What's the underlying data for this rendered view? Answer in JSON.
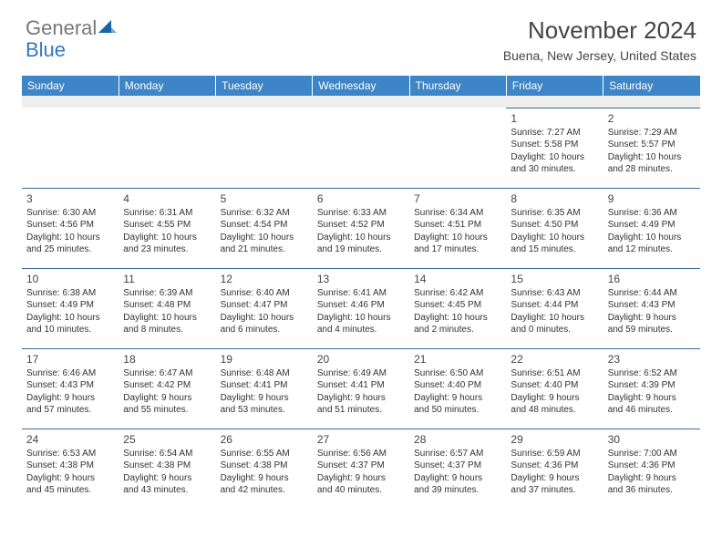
{
  "logo": {
    "general": "General",
    "blue": "Blue"
  },
  "title": "November 2024",
  "location": "Buena, New Jersey, United States",
  "colors": {
    "header_bg": "#3d85c6",
    "header_fg": "#ffffff",
    "border": "#3d6a99",
    "blank_bg": "#eeeeee",
    "text": "#333333",
    "logo_gray": "#777777",
    "logo_blue": "#2f7abf"
  },
  "weekdays": [
    "Sunday",
    "Monday",
    "Tuesday",
    "Wednesday",
    "Thursday",
    "Friday",
    "Saturday"
  ],
  "weeks": [
    [
      null,
      null,
      null,
      null,
      null,
      {
        "n": "1",
        "sr": "Sunrise: 7:27 AM",
        "ss": "Sunset: 5:58 PM",
        "d1": "Daylight: 10 hours",
        "d2": "and 30 minutes."
      },
      {
        "n": "2",
        "sr": "Sunrise: 7:29 AM",
        "ss": "Sunset: 5:57 PM",
        "d1": "Daylight: 10 hours",
        "d2": "and 28 minutes."
      }
    ],
    [
      {
        "n": "3",
        "sr": "Sunrise: 6:30 AM",
        "ss": "Sunset: 4:56 PM",
        "d1": "Daylight: 10 hours",
        "d2": "and 25 minutes."
      },
      {
        "n": "4",
        "sr": "Sunrise: 6:31 AM",
        "ss": "Sunset: 4:55 PM",
        "d1": "Daylight: 10 hours",
        "d2": "and 23 minutes."
      },
      {
        "n": "5",
        "sr": "Sunrise: 6:32 AM",
        "ss": "Sunset: 4:54 PM",
        "d1": "Daylight: 10 hours",
        "d2": "and 21 minutes."
      },
      {
        "n": "6",
        "sr": "Sunrise: 6:33 AM",
        "ss": "Sunset: 4:52 PM",
        "d1": "Daylight: 10 hours",
        "d2": "and 19 minutes."
      },
      {
        "n": "7",
        "sr": "Sunrise: 6:34 AM",
        "ss": "Sunset: 4:51 PM",
        "d1": "Daylight: 10 hours",
        "d2": "and 17 minutes."
      },
      {
        "n": "8",
        "sr": "Sunrise: 6:35 AM",
        "ss": "Sunset: 4:50 PM",
        "d1": "Daylight: 10 hours",
        "d2": "and 15 minutes."
      },
      {
        "n": "9",
        "sr": "Sunrise: 6:36 AM",
        "ss": "Sunset: 4:49 PM",
        "d1": "Daylight: 10 hours",
        "d2": "and 12 minutes."
      }
    ],
    [
      {
        "n": "10",
        "sr": "Sunrise: 6:38 AM",
        "ss": "Sunset: 4:49 PM",
        "d1": "Daylight: 10 hours",
        "d2": "and 10 minutes."
      },
      {
        "n": "11",
        "sr": "Sunrise: 6:39 AM",
        "ss": "Sunset: 4:48 PM",
        "d1": "Daylight: 10 hours",
        "d2": "and 8 minutes."
      },
      {
        "n": "12",
        "sr": "Sunrise: 6:40 AM",
        "ss": "Sunset: 4:47 PM",
        "d1": "Daylight: 10 hours",
        "d2": "and 6 minutes."
      },
      {
        "n": "13",
        "sr": "Sunrise: 6:41 AM",
        "ss": "Sunset: 4:46 PM",
        "d1": "Daylight: 10 hours",
        "d2": "and 4 minutes."
      },
      {
        "n": "14",
        "sr": "Sunrise: 6:42 AM",
        "ss": "Sunset: 4:45 PM",
        "d1": "Daylight: 10 hours",
        "d2": "and 2 minutes."
      },
      {
        "n": "15",
        "sr": "Sunrise: 6:43 AM",
        "ss": "Sunset: 4:44 PM",
        "d1": "Daylight: 10 hours",
        "d2": "and 0 minutes."
      },
      {
        "n": "16",
        "sr": "Sunrise: 6:44 AM",
        "ss": "Sunset: 4:43 PM",
        "d1": "Daylight: 9 hours",
        "d2": "and 59 minutes."
      }
    ],
    [
      {
        "n": "17",
        "sr": "Sunrise: 6:46 AM",
        "ss": "Sunset: 4:43 PM",
        "d1": "Daylight: 9 hours",
        "d2": "and 57 minutes."
      },
      {
        "n": "18",
        "sr": "Sunrise: 6:47 AM",
        "ss": "Sunset: 4:42 PM",
        "d1": "Daylight: 9 hours",
        "d2": "and 55 minutes."
      },
      {
        "n": "19",
        "sr": "Sunrise: 6:48 AM",
        "ss": "Sunset: 4:41 PM",
        "d1": "Daylight: 9 hours",
        "d2": "and 53 minutes."
      },
      {
        "n": "20",
        "sr": "Sunrise: 6:49 AM",
        "ss": "Sunset: 4:41 PM",
        "d1": "Daylight: 9 hours",
        "d2": "and 51 minutes."
      },
      {
        "n": "21",
        "sr": "Sunrise: 6:50 AM",
        "ss": "Sunset: 4:40 PM",
        "d1": "Daylight: 9 hours",
        "d2": "and 50 minutes."
      },
      {
        "n": "22",
        "sr": "Sunrise: 6:51 AM",
        "ss": "Sunset: 4:40 PM",
        "d1": "Daylight: 9 hours",
        "d2": "and 48 minutes."
      },
      {
        "n": "23",
        "sr": "Sunrise: 6:52 AM",
        "ss": "Sunset: 4:39 PM",
        "d1": "Daylight: 9 hours",
        "d2": "and 46 minutes."
      }
    ],
    [
      {
        "n": "24",
        "sr": "Sunrise: 6:53 AM",
        "ss": "Sunset: 4:38 PM",
        "d1": "Daylight: 9 hours",
        "d2": "and 45 minutes."
      },
      {
        "n": "25",
        "sr": "Sunrise: 6:54 AM",
        "ss": "Sunset: 4:38 PM",
        "d1": "Daylight: 9 hours",
        "d2": "and 43 minutes."
      },
      {
        "n": "26",
        "sr": "Sunrise: 6:55 AM",
        "ss": "Sunset: 4:38 PM",
        "d1": "Daylight: 9 hours",
        "d2": "and 42 minutes."
      },
      {
        "n": "27",
        "sr": "Sunrise: 6:56 AM",
        "ss": "Sunset: 4:37 PM",
        "d1": "Daylight: 9 hours",
        "d2": "and 40 minutes."
      },
      {
        "n": "28",
        "sr": "Sunrise: 6:57 AM",
        "ss": "Sunset: 4:37 PM",
        "d1": "Daylight: 9 hours",
        "d2": "and 39 minutes."
      },
      {
        "n": "29",
        "sr": "Sunrise: 6:59 AM",
        "ss": "Sunset: 4:36 PM",
        "d1": "Daylight: 9 hours",
        "d2": "and 37 minutes."
      },
      {
        "n": "30",
        "sr": "Sunrise: 7:00 AM",
        "ss": "Sunset: 4:36 PM",
        "d1": "Daylight: 9 hours",
        "d2": "and 36 minutes."
      }
    ]
  ]
}
